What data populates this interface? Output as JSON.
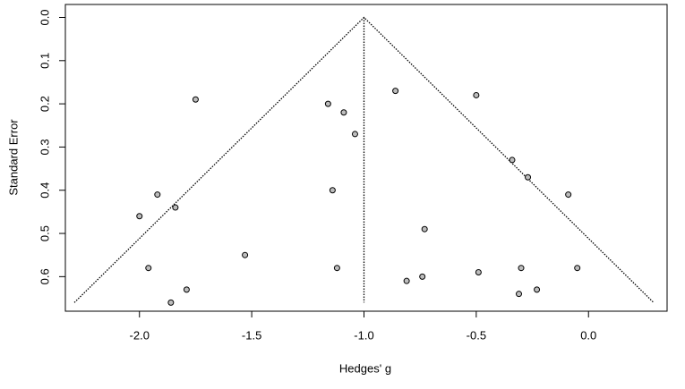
{
  "chart_data": {
    "type": "scatter",
    "x_label": "Hedges' g",
    "y_label": "Standard Error",
    "xlim": [
      -2.33,
      0.35
    ],
    "ylim": [
      0.68,
      -0.03
    ],
    "xticks": [
      {
        "value": -2.0,
        "label": "-2.0"
      },
      -1.5,
      {
        "value": -1.0,
        "label": "-1.0"
      },
      -0.5,
      {
        "value": 0.0,
        "label": "0.0"
      }
    ],
    "yticks": [
      {
        "value": 0.0,
        "label": "0.0"
      },
      0.1,
      0.2,
      0.3,
      0.4,
      0.5,
      0.6
    ],
    "color": "#bdbdbd",
    "funnel_lines": {
      "x": [
        -2.29,
        -1.0,
        0.29
      ],
      "y": [
        0.66,
        0,
        0.66
      ]
    },
    "center_line": {
      "x": [
        -1.0,
        -1.0
      ],
      "y": [
        0,
        0.66
      ]
    },
    "x": [
      -1.75,
      -1.16,
      -1.09,
      -1.04,
      -0.86,
      -0.5,
      -0.34,
      -0.27,
      -0.09,
      -1.92,
      -2.0,
      -1.84,
      -1.14,
      -0.73,
      -1.53,
      -1.96,
      -1.12,
      -0.05,
      -0.49,
      -0.3,
      -0.81,
      -0.74,
      -1.79,
      -1.86,
      -0.31,
      -0.23
    ],
    "y": [
      0.19,
      0.2,
      0.22,
      0.27,
      0.17,
      0.18,
      0.33,
      0.37,
      0.41,
      0.41,
      0.46,
      0.44,
      0.4,
      0.49,
      0.55,
      0.58,
      0.58,
      0.58,
      0.59,
      0.58,
      0.61,
      0.6,
      0.63,
      0.66,
      0.64,
      0.63
    ]
  }
}
